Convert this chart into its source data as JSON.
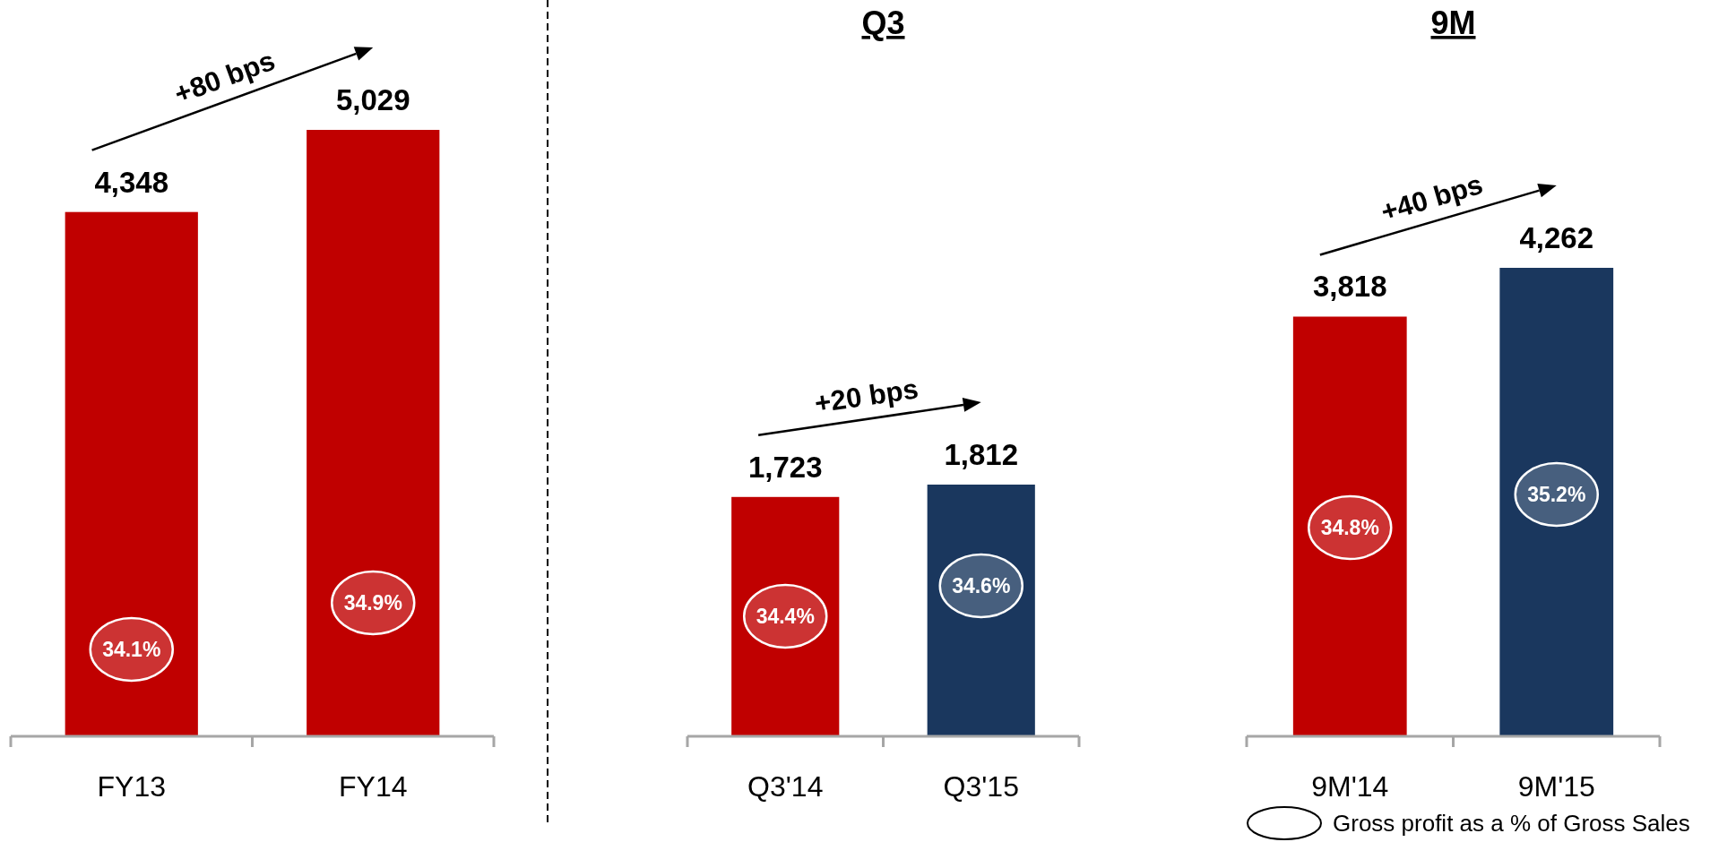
{
  "chart_data": [
    {
      "type": "bar",
      "categories": [
        "FY13",
        "FY14"
      ],
      "values": [
        4348,
        5029
      ],
      "colors": [
        "#c00000",
        "#c00000"
      ],
      "value_labels": [
        "4,348",
        "5,029"
      ],
      "tick_labels": "x",
      "annotations": [
        "+80 bps",
        "34.1%",
        "34.9%"
      ]
    },
    {
      "type": "bar",
      "title": "Q3",
      "categories": [
        "Q3'14",
        "Q3'15"
      ],
      "values": [
        1723,
        1812
      ],
      "colors": [
        "#c00000",
        "#1a375e"
      ],
      "value_labels": [
        "1,723",
        "1,812"
      ],
      "tick_labels": "x",
      "annotations": [
        "+20 bps",
        "34.4%",
        "34.6%"
      ]
    },
    {
      "type": "bar",
      "title": "9M",
      "categories": [
        "9M'14",
        "9M'15"
      ],
      "values": [
        3818,
        4262
      ],
      "colors": [
        "#c00000",
        "#1a375e"
      ],
      "value_labels": [
        "3,818",
        "4,262"
      ],
      "tick_labels": "x",
      "annotations": [
        "+40 bps",
        "34.8%",
        "35.2%",
        "Gross profit as a % of Gross Sales"
      ]
    }
  ]
}
